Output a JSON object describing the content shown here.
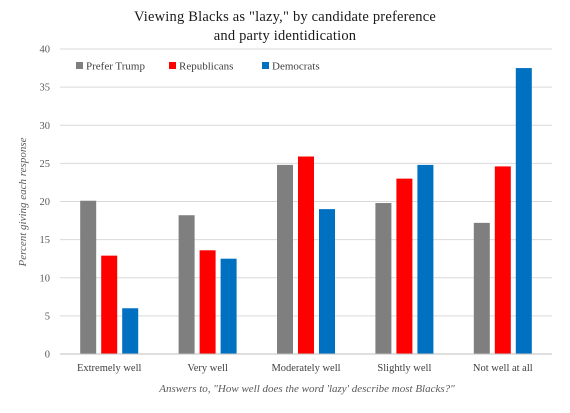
{
  "chart_data": {
    "type": "bar",
    "title_lines": [
      "Viewing Blacks as \"lazy,\" by candidate preference",
      "and party identidication"
    ],
    "xlabel": "Answers to, \"How well does the word 'lazy' describe most Blacks?\"",
    "ylabel": "Percent giving each response",
    "ylim": [
      0,
      40
    ],
    "yticks": [
      "0",
      "5",
      "10",
      "15",
      "20",
      "25",
      "30",
      "35",
      "40"
    ],
    "grid": true,
    "legend_position": "top-left",
    "categories": [
      "Extremely well",
      "Very well",
      "Moderately well",
      "Slightly well",
      "Not well at all"
    ],
    "series": [
      {
        "name": "Prefer Trump",
        "color": "#7f7f7f",
        "values": [
          20.1,
          18.2,
          24.8,
          19.8,
          17.2
        ]
      },
      {
        "name": "Republicans",
        "color": "#ff0000",
        "values": [
          12.9,
          13.6,
          25.9,
          23.0,
          24.6
        ]
      },
      {
        "name": "Democrats",
        "color": "#0070c0",
        "values": [
          6.0,
          12.5,
          19.0,
          24.8,
          37.5
        ]
      }
    ]
  }
}
